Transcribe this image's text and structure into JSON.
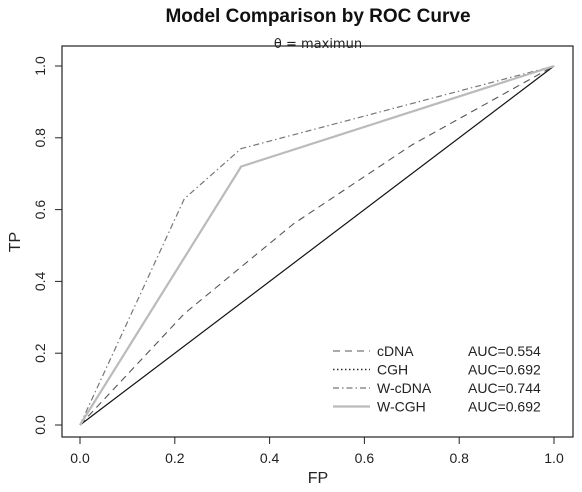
{
  "chart_data": {
    "type": "line",
    "title": "Model Comparison by ROC Curve",
    "subtitle": "θ = maximun",
    "xlabel": "FP",
    "ylabel": "TP",
    "xlim": [
      0,
      1
    ],
    "ylim": [
      0,
      1
    ],
    "x_ticks": [
      "0.0",
      "0.2",
      "0.4",
      "0.6",
      "0.8",
      "1.0"
    ],
    "y_ticks": [
      "0.0",
      "0.2",
      "0.4",
      "0.6",
      "0.8",
      "1.0"
    ],
    "grid": false,
    "legend_position": "bottom-right",
    "reference_line": {
      "from": [
        0,
        0
      ],
      "to": [
        1,
        1
      ]
    },
    "series": [
      {
        "name": "cDNA",
        "auc_label": "AUC=0.554",
        "dash": "dashed",
        "color": "#555555",
        "points": [
          [
            0,
            0
          ],
          [
            0.22,
            0.31
          ],
          [
            0.45,
            0.56
          ],
          [
            0.7,
            0.78
          ],
          [
            1,
            1
          ]
        ]
      },
      {
        "name": "CGH",
        "auc_label": "AUC=0.692",
        "dash": "dotted",
        "color": "#333333",
        "points": [
          [
            0,
            0
          ],
          [
            0.34,
            0.72
          ],
          [
            1,
            1
          ]
        ]
      },
      {
        "name": "W-cDNA",
        "auc_label": "AUC=0.744",
        "dash": "dashdot",
        "color": "#777777",
        "points": [
          [
            0,
            0
          ],
          [
            0.22,
            0.63
          ],
          [
            0.34,
            0.77
          ],
          [
            1,
            1
          ]
        ]
      },
      {
        "name": "W-CGH",
        "auc_label": "AUC=0.692",
        "dash": "solid-gray",
        "color": "#bbbbbb",
        "points": [
          [
            0,
            0
          ],
          [
            0.34,
            0.72
          ],
          [
            1,
            1
          ]
        ]
      }
    ]
  }
}
